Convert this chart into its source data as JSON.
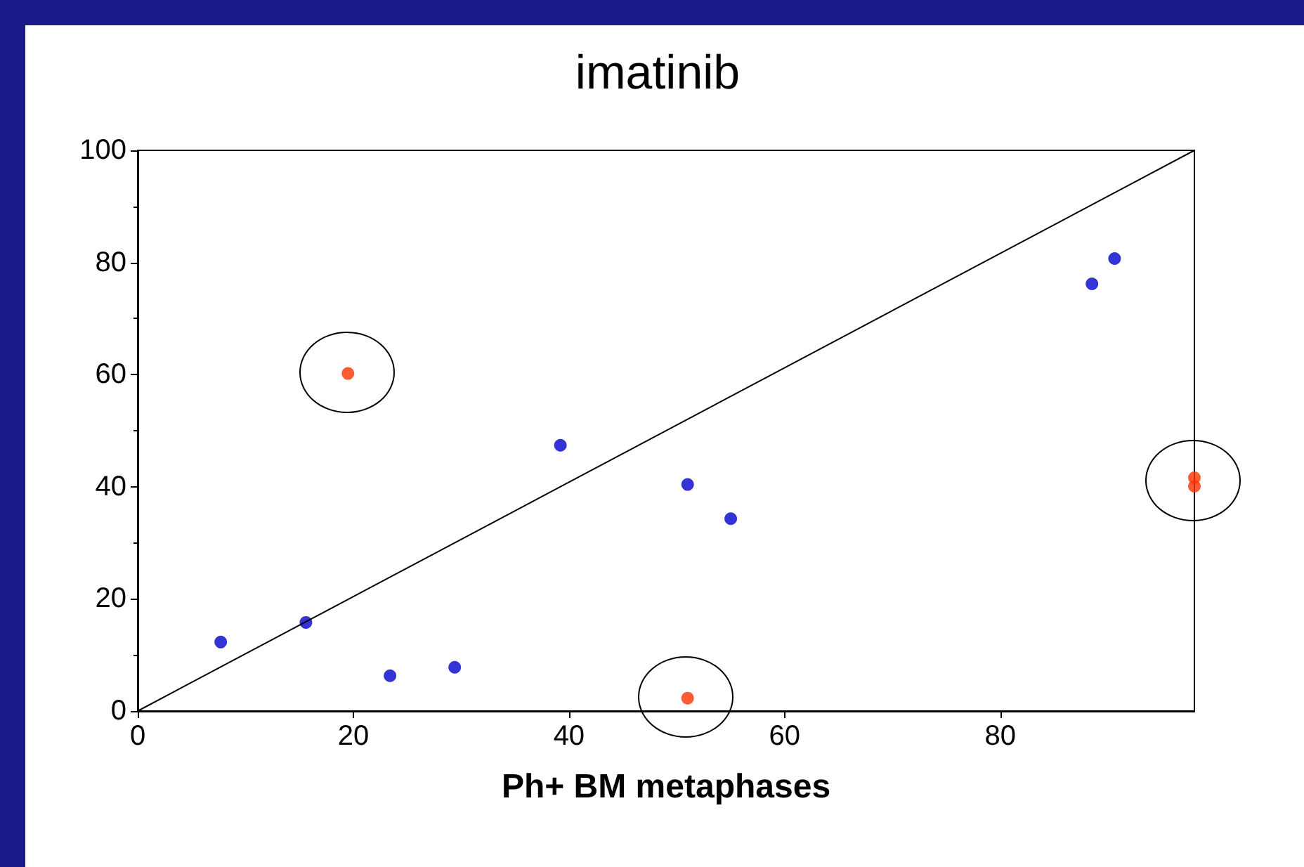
{
  "chart_data": {
    "type": "scatter",
    "title": "imatinib",
    "xlabel": "Ph+ BM metaphases",
    "xlim": [
      0,
      98
    ],
    "ylim": [
      0,
      100
    ],
    "xticks": [
      0,
      20,
      40,
      60,
      80
    ],
    "yticks": [
      0,
      20,
      40,
      60,
      80,
      100
    ],
    "grid": false,
    "marker": "circle",
    "series": [
      {
        "color": "#0000cc",
        "x": [
          7.7,
          15.6,
          23.4,
          29.4,
          39.2,
          51.0,
          55.0,
          88.5,
          90.6
        ],
        "values": [
          12.3,
          15.8,
          6.3,
          7.8,
          47.4,
          40.4,
          34.3,
          76.2,
          80.7
        ]
      },
      {
        "color": "#ff3300",
        "x": [
          19.5,
          51.0,
          98,
          98
        ],
        "values": [
          60.2,
          2.3,
          41.6,
          40.1
        ]
      },
      {
        "type": "line",
        "color": "#000000",
        "marker": "none",
        "x": [
          0,
          98
        ],
        "values": [
          0,
          100
        ]
      }
    ]
  }
}
